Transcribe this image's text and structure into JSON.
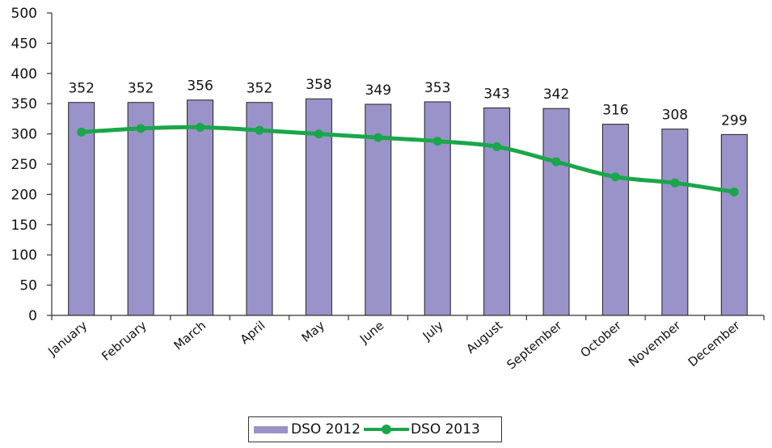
{
  "chart_data": {
    "type": "bar",
    "title": "",
    "xlabel": "",
    "ylabel": "",
    "categories": [
      "January",
      "February",
      "March",
      "April",
      "May",
      "June",
      "July",
      "August",
      "September",
      "October",
      "November",
      "December"
    ],
    "series": [
      {
        "name": "DSO 2012",
        "type": "bar",
        "values": [
          352,
          352,
          356,
          352,
          358,
          349,
          353,
          343,
          342,
          316,
          308,
          299
        ],
        "color": "#9a93c9"
      },
      {
        "name": "DSO 2013",
        "type": "line",
        "values": [
          303,
          309,
          311,
          306,
          300,
          294,
          288,
          279,
          254,
          229,
          219,
          204
        ],
        "color": "#1aa64a"
      }
    ],
    "data_labels": [
      "352",
      "352",
      "356",
      "352",
      "358",
      "349",
      "353",
      "343",
      "342",
      "316",
      "308",
      "299"
    ],
    "ylim": [
      0,
      500
    ],
    "yticks": [
      0,
      50,
      100,
      150,
      200,
      250,
      300,
      350,
      400,
      450,
      500
    ],
    "ytick_labels": [
      "0",
      "50",
      "100",
      "150",
      "200",
      "250",
      "300",
      "350",
      "400",
      "450",
      "500"
    ],
    "grid": false,
    "legend_position": "bottom"
  },
  "legend": {
    "bar_label": "DSO 2012",
    "line_label": "DSO 2013"
  }
}
